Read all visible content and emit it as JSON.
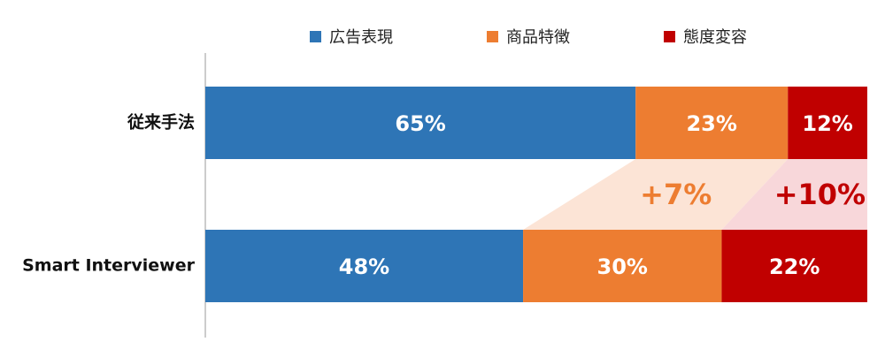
{
  "chart_data": {
    "type": "bar",
    "orientation": "horizontal",
    "stacked": true,
    "categories": [
      "従来手法",
      "Smart Interviewer"
    ],
    "xlim": [
      0,
      100
    ],
    "series": [
      {
        "name": "広告表現",
        "color": "#2e75b6",
        "values": [
          65,
          48
        ],
        "value_labels": [
          "65%",
          "48%"
        ]
      },
      {
        "name": "商品特徴",
        "color": "#ed7d31",
        "values": [
          23,
          30
        ],
        "value_labels": [
          "23%",
          "30%"
        ]
      },
      {
        "name": "態度変容",
        "color": "#c00000",
        "values": [
          12,
          22
        ],
        "value_labels": [
          "12%",
          "22%"
        ]
      }
    ],
    "annotations": [
      {
        "label": "+7%",
        "value": 7,
        "color": "#ed7d31",
        "fill": "#fce4d6"
      },
      {
        "label": "+10%",
        "value": 10,
        "color": "#c00000",
        "fill": "#f8d7da"
      }
    ]
  }
}
